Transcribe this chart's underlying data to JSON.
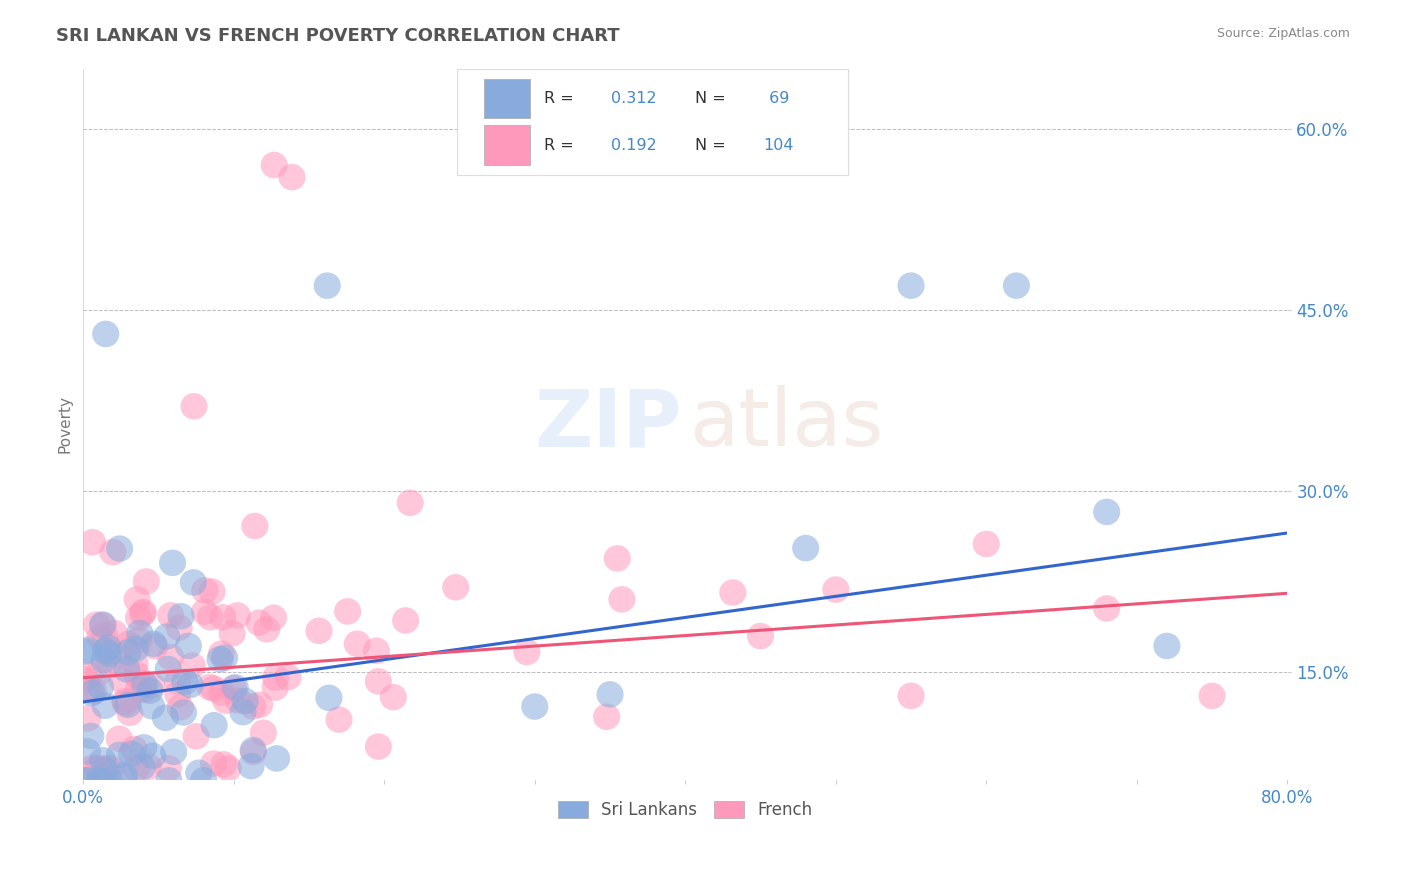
{
  "title": "SRI LANKAN VS FRENCH POVERTY CORRELATION CHART",
  "source": "Source: ZipAtlas.com",
  "ylabel": "Poverty",
  "xlim": [
    0.0,
    0.8
  ],
  "ylim": [
    0.06,
    0.65
  ],
  "yticks": [
    0.15,
    0.3,
    0.45,
    0.6
  ],
  "blue_color": "#88AADD",
  "pink_color": "#FF99BB",
  "line_blue": "#3366CC",
  "line_pink": "#EE5577",
  "bg_color": "#FFFFFF",
  "grid_color": "#BBBBBB",
  "tick_color": "#4488CC",
  "title_color": "#555555",
  "source_color": "#888888",
  "R_blue": 0.312,
  "N_blue": 69,
  "R_pink": 0.192,
  "N_pink": 104,
  "legend_box_color": "#AABBDD",
  "legend_atlas_color": "#DDAA99",
  "blue_line_start_y": 0.125,
  "blue_line_end_y": 0.265,
  "pink_line_start_y": 0.145,
  "pink_line_end_y": 0.215
}
